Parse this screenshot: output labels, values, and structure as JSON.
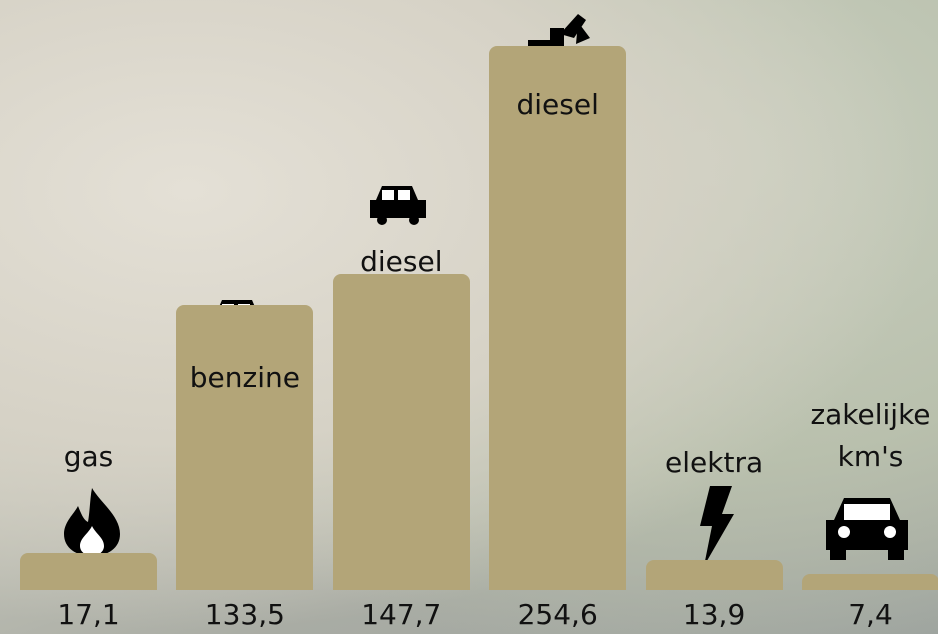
{
  "chart_data": {
    "type": "bar",
    "categories": [
      "gas",
      "benzine",
      "diesel",
      "diesel",
      "elektra",
      "zakelijke km's"
    ],
    "values": [
      17.1,
      133.5,
      147.7,
      254.6,
      13.9,
      7.4
    ],
    "value_labels": [
      "17,1",
      "133,5",
      "147,7",
      "254,6",
      "13,9",
      "7,4"
    ],
    "color": "#b3a578"
  }
}
